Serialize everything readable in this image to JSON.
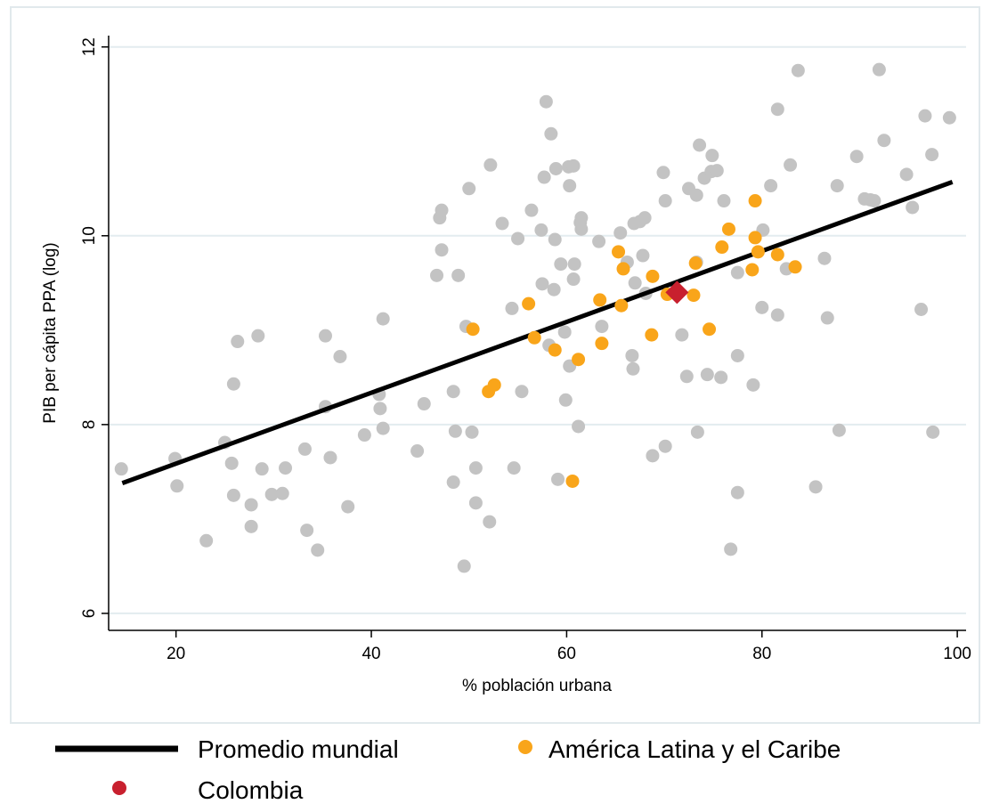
{
  "chart_data": {
    "type": "scatter",
    "xlabel": "% población urbana",
    "ylabel": "PIB per cápita PPA (log)",
    "xlim": [
      13.1,
      100.9
    ],
    "ylim": [
      5.82,
      12.12
    ],
    "xticks": [
      20,
      40,
      60,
      80,
      100
    ],
    "yticks": [
      6,
      8,
      10,
      12
    ],
    "grid": true,
    "legend": "bottom",
    "series": [
      {
        "name": "Promedio mundial",
        "type": "line",
        "color": "#000000",
        "x": [
          14.5,
          99.5
        ],
        "values": [
          7.38,
          10.57
        ]
      },
      {
        "type": "scatter",
        "color": "#c3c3c3",
        "x": [
          14.4,
          19.9,
          20.1,
          23.1,
          25.0,
          25.7,
          25.9,
          25.9,
          26.3,
          27.7,
          27.7,
          28.4,
          28.8,
          29.8,
          30.9,
          31.2,
          33.2,
          33.4,
          34.5,
          35.3,
          35.3,
          35.8,
          36.8,
          37.6,
          39.3,
          40.8,
          40.9,
          41.2,
          41.2,
          44.7,
          45.4,
          46.7,
          47.0,
          47.2,
          47.2,
          48.4,
          48.4,
          48.6,
          48.9,
          49.5,
          49.7,
          50.0,
          50.3,
          50.7,
          50.7,
          52.1,
          52.2,
          53.4,
          54.4,
          54.6,
          55.0,
          55.4,
          56.4,
          57.4,
          57.5,
          57.7,
          57.9,
          58.4,
          58.2,
          58.7,
          58.8,
          58.9,
          59.1,
          59.4,
          59.8,
          59.9,
          60.2,
          60.3,
          60.3,
          60.7,
          60.8,
          60.7,
          61.2,
          61.4,
          61.5,
          61.5,
          63.3,
          63.6,
          65.5,
          66.2,
          66.7,
          66.8,
          66.9,
          67.0,
          67.5,
          67.8,
          68.0,
          68.1,
          68.8,
          69.9,
          70.1,
          70.1,
          71.8,
          72.3,
          72.5,
          73.3,
          73.3,
          73.4,
          73.6,
          74.1,
          74.4,
          74.8,
          74.9,
          75.4,
          75.8,
          76.1,
          76.8,
          77.5,
          77.5,
          77.5,
          79.1,
          80.0,
          80.1,
          80.9,
          81.6,
          81.6,
          82.5,
          82.9,
          83.7,
          85.5,
          86.4,
          86.7,
          87.7,
          87.9,
          89.7,
          90.5,
          91.1,
          91.5,
          92.0,
          92.5,
          94.8,
          95.4,
          96.3,
          96.7,
          97.4,
          97.5,
          99.2
        ],
        "values": [
          7.53,
          7.64,
          7.35,
          6.77,
          7.81,
          7.59,
          8.43,
          7.25,
          8.88,
          7.15,
          6.92,
          8.94,
          7.53,
          7.26,
          7.27,
          7.54,
          7.74,
          6.88,
          6.67,
          8.94,
          8.19,
          7.65,
          8.72,
          7.13,
          7.89,
          8.32,
          8.17,
          7.96,
          9.12,
          7.72,
          8.22,
          9.58,
          10.19,
          10.27,
          9.85,
          8.35,
          7.39,
          7.93,
          9.58,
          6.5,
          9.04,
          10.5,
          7.92,
          7.54,
          7.17,
          6.97,
          10.75,
          10.13,
          9.23,
          7.54,
          9.97,
          8.35,
          10.27,
          10.06,
          9.49,
          10.62,
          11.42,
          11.08,
          8.84,
          9.43,
          9.96,
          10.71,
          7.42,
          9.7,
          8.98,
          8.26,
          10.73,
          10.53,
          8.62,
          10.74,
          9.7,
          9.54,
          7.98,
          10.14,
          10.19,
          10.07,
          9.94,
          9.04,
          10.03,
          9.72,
          8.73,
          8.59,
          10.13,
          9.5,
          10.15,
          9.79,
          10.19,
          9.39,
          7.67,
          10.67,
          10.37,
          7.77,
          8.95,
          8.51,
          10.5,
          10.43,
          9.72,
          7.92,
          10.96,
          10.61,
          8.53,
          10.68,
          10.85,
          10.69,
          8.5,
          10.37,
          6.68,
          9.61,
          8.73,
          7.28,
          8.42,
          9.24,
          10.06,
          10.53,
          11.34,
          9.16,
          9.65,
          10.75,
          11.75,
          7.34,
          9.76,
          9.13,
          10.53,
          7.94,
          10.84,
          10.39,
          10.38,
          10.37,
          11.76,
          11.01,
          10.65,
          10.3,
          9.22,
          11.27,
          10.86,
          7.92,
          11.25
        ]
      },
      {
        "name": "América Latina y el Caribe",
        "type": "scatter",
        "color": "#f9a51a",
        "x": [
          50.4,
          52.0,
          52.6,
          56.1,
          56.7,
          58.8,
          60.6,
          61.2,
          63.4,
          63.6,
          65.3,
          65.6,
          65.8,
          68.8,
          68.7,
          70.3,
          73.0,
          73.2,
          74.6,
          75.9,
          76.6,
          79.0,
          79.3,
          79.3,
          79.6,
          81.6,
          83.4
        ],
        "values": [
          9.01,
          8.35,
          8.42,
          9.28,
          8.92,
          8.79,
          7.4,
          8.69,
          9.32,
          8.86,
          9.83,
          9.26,
          9.65,
          9.57,
          8.95,
          9.38,
          9.37,
          9.71,
          9.01,
          9.88,
          10.07,
          9.64,
          10.37,
          9.98,
          9.83,
          9.8,
          9.67
        ]
      },
      {
        "name": "Colombia",
        "type": "scatter",
        "marker": "diamond",
        "color": "#c8202e",
        "x": [
          71.3
        ],
        "values": [
          9.4
        ]
      }
    ]
  }
}
